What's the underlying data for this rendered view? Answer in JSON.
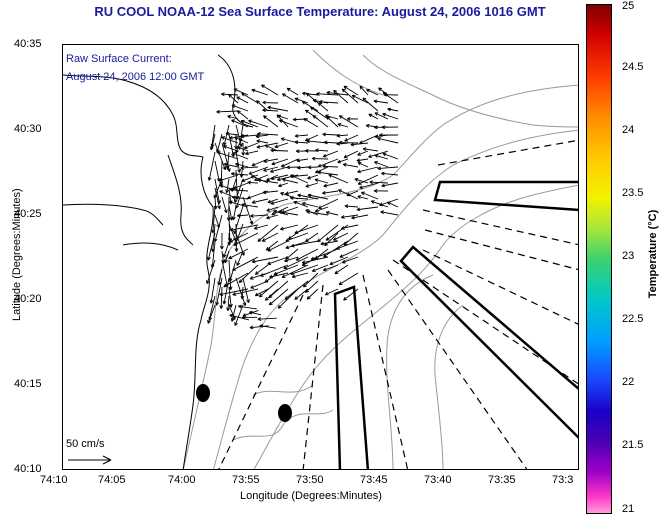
{
  "title": "RU COOL  NOAA-12  Sea Surface Temperature:  August 24, 2006 1016 GMT",
  "legend": {
    "line1": "Raw Surface Current:",
    "line2": "August 24, 2006 12:00 GMT",
    "scale_label": "50 cm/s"
  },
  "axes": {
    "xlabel": "Longitude (Degrees:Minutes)",
    "ylabel": "Latitude (Degrees:Minutes)",
    "xticks": [
      "74:10",
      "74:05",
      "74:00",
      "73:55",
      "73:50",
      "73:45",
      "73:40",
      "73:35",
      "73:3"
    ],
    "yticks": [
      "40:35",
      "40:30",
      "40:25",
      "40:20",
      "40:15",
      "40:10"
    ]
  },
  "colorbar": {
    "title": "Temperature (°C)",
    "ticks": [
      "25",
      "24.5",
      "24",
      "23.5",
      "23",
      "22.5",
      "22",
      "21.5",
      "21"
    ],
    "range": [
      21,
      25
    ]
  },
  "colors": {
    "title_text": "#1a1a9c",
    "land_line": "#000000",
    "bathymetry": "#888888"
  }
}
